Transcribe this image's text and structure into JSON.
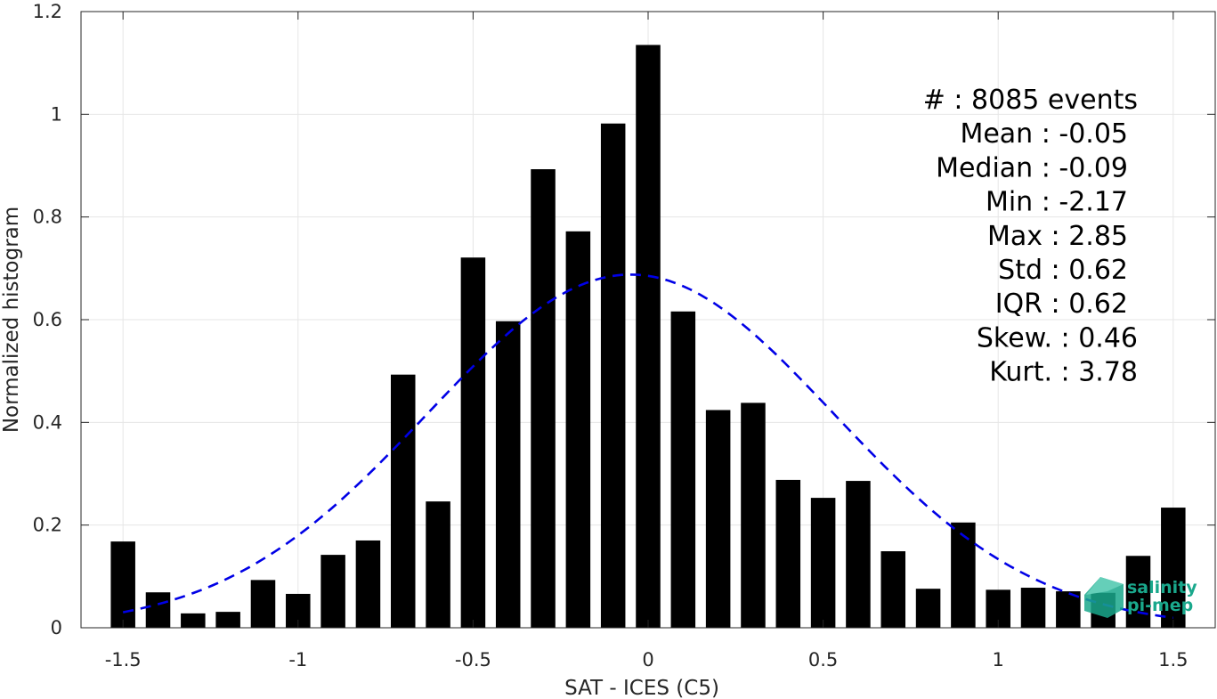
{
  "chart_data": {
    "type": "bar",
    "xlabel": "SAT - ICES (C5)",
    "ylabel": "Normalized histogram",
    "xlim": [
      -1.62,
      1.62
    ],
    "ylim": [
      0,
      1.2
    ],
    "xticks": [
      -1.5,
      -1,
      -0.5,
      0,
      0.5,
      1,
      1.5
    ],
    "xtick_labels": [
      "-1.5",
      "-1",
      "-0.5",
      "0",
      "0.5",
      "1",
      "1.5"
    ],
    "yticks": [
      0,
      0.2,
      0.4,
      0.6,
      0.8,
      1,
      1.2
    ],
    "ytick_labels": [
      "0",
      "0.2",
      "0.4",
      "0.6",
      "0.8",
      "1",
      "1.2"
    ],
    "grid": true,
    "bar_color": "#000000",
    "bins": [
      -1.5,
      -1.4,
      -1.3,
      -1.2,
      -1.1,
      -1.0,
      -0.9,
      -0.8,
      -0.7,
      -0.6,
      -0.5,
      -0.4,
      -0.3,
      -0.2,
      -0.1,
      0.0,
      0.1,
      0.2,
      0.3,
      0.4,
      0.5,
      0.6,
      0.7,
      0.8,
      0.9,
      1.0,
      1.1,
      1.2,
      1.3,
      1.4,
      1.5
    ],
    "values": [
      0.168,
      0.069,
      0.028,
      0.031,
      0.093,
      0.066,
      0.142,
      0.17,
      0.493,
      0.246,
      0.721,
      0.597,
      0.893,
      0.772,
      0.982,
      1.135,
      0.616,
      0.424,
      0.438,
      0.288,
      0.253,
      0.286,
      0.149,
      0.076,
      0.205,
      0.074,
      0.078,
      0.071,
      0.068,
      0.14,
      0.234
    ],
    "fit_curve": {
      "style": "dashed",
      "color": "#0000e6",
      "mean": -0.05,
      "std": 0.58,
      "x_range": [
        -1.5,
        1.5
      ]
    }
  },
  "stats": {
    "lines": [
      "#  : 8085 events",
      "Mean : -0.05",
      "Median : -0.09",
      "Min : -2.17",
      "Max : 2.85",
      "Std : 0.62",
      "IQR : 0.62",
      "Skew. : 0.46",
      "Kurt. : 3.78"
    ]
  },
  "logo": {
    "line1": "salinity",
    "line2": "pi-mep",
    "color": "#1aa88c"
  }
}
